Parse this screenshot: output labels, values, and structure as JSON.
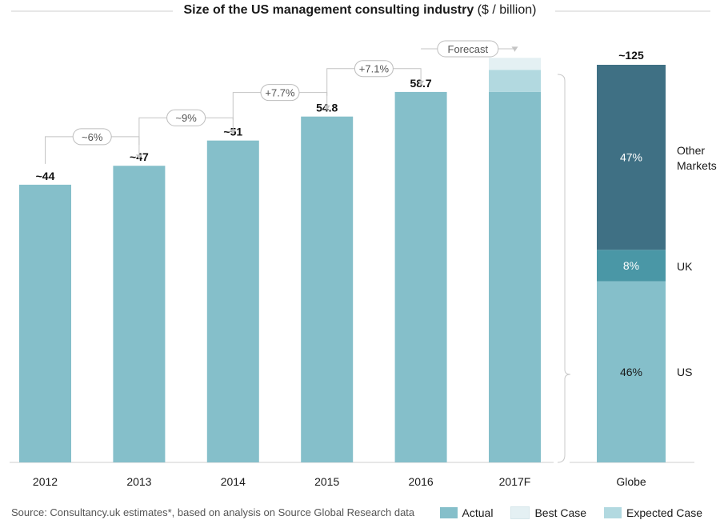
{
  "title": {
    "main": "Size of the US management consulting industry",
    "unit": "($ / billion)"
  },
  "source": "Source: Consultancy.uk estimates*, based on analysis on Source Global Research data",
  "colors": {
    "actual": "#85bfca",
    "best_case": "#e4f0f3",
    "expected_case": "#b2d9e0",
    "other_markets": "#3f7084",
    "uk": "#4a97a6",
    "us": "#85bfca",
    "axis": "#cfcfcf",
    "bubble_border": "#bdbdbd",
    "bubble_text": "#555555"
  },
  "legend": [
    {
      "label": "Actual",
      "color_key": "actual"
    },
    {
      "label": "Best Case",
      "color_key": "best_case"
    },
    {
      "label": "Expected Case",
      "color_key": "expected_case"
    }
  ],
  "chart_data": {
    "type": "bar",
    "title": "Size of the US management consulting industry ($ / billion)",
    "categories": [
      "2012",
      "2013",
      "2014",
      "2015",
      "2016",
      "2017F"
    ],
    "series": [
      {
        "name": "Actual",
        "values": [
          44,
          47,
          51,
          54.8,
          58.7,
          58.7
        ]
      },
      {
        "name": "Expected Case",
        "values": [
          0,
          0,
          0,
          0,
          0,
          3.5
        ]
      },
      {
        "name": "Best Case",
        "values": [
          0,
          0,
          0,
          0,
          0,
          1.9
        ]
      }
    ],
    "value_labels": [
      "~44",
      "~47",
      "~51",
      "54.8",
      "58.7",
      ""
    ],
    "growth_labels": [
      "~6%",
      "~9%",
      "+7.7%",
      "+7.1%",
      "Forecast"
    ],
    "ylim": [
      0,
      63
    ],
    "globe": {
      "category": "Globe",
      "total_label": "~125",
      "segments": [
        {
          "name": "US",
          "share": 46,
          "label": "46%"
        },
        {
          "name": "UK",
          "share": 8,
          "label": "8%"
        },
        {
          "name": "Other Markets",
          "share": 47,
          "label": "47%"
        }
      ],
      "segment_labels": [
        "US",
        "UK",
        "Other",
        "Markets"
      ]
    }
  }
}
